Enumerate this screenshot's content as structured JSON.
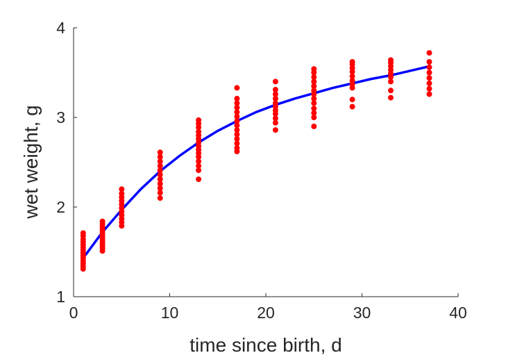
{
  "chart_data": {
    "type": "scatter",
    "title": "",
    "xlabel": "time since birth, d",
    "ylabel": "wet weight, g",
    "xlim": [
      0,
      40
    ],
    "ylim": [
      1,
      4
    ],
    "xticks": [
      0,
      10,
      20,
      30,
      40
    ],
    "yticks": [
      1,
      2,
      3,
      4
    ],
    "grid": false,
    "colors": {
      "points": "#ff0000",
      "curve": "#0000ff",
      "axes": "#262626"
    },
    "series": [
      {
        "type": "scatter",
        "points": [
          [
            1,
            1.31
          ],
          [
            1,
            1.34
          ],
          [
            1,
            1.37
          ],
          [
            1,
            1.4
          ],
          [
            1,
            1.43
          ],
          [
            1,
            1.46
          ],
          [
            1,
            1.49
          ],
          [
            1,
            1.52
          ],
          [
            1,
            1.55
          ],
          [
            1,
            1.58
          ],
          [
            1,
            1.61
          ],
          [
            1,
            1.64
          ],
          [
            1,
            1.68
          ],
          [
            1,
            1.71
          ],
          [
            3,
            1.51
          ],
          [
            3,
            1.54
          ],
          [
            3,
            1.57
          ],
          [
            3,
            1.6
          ],
          [
            3,
            1.63
          ],
          [
            3,
            1.66
          ],
          [
            3,
            1.69
          ],
          [
            3,
            1.72
          ],
          [
            3,
            1.75
          ],
          [
            3,
            1.78
          ],
          [
            3,
            1.81
          ],
          [
            3,
            1.84
          ],
          [
            5,
            1.79
          ],
          [
            5,
            1.83
          ],
          [
            5,
            1.87
          ],
          [
            5,
            1.91
          ],
          [
            5,
            1.95
          ],
          [
            5,
            1.99
          ],
          [
            5,
            2.03
          ],
          [
            5,
            2.07
          ],
          [
            5,
            2.11
          ],
          [
            5,
            2.15
          ],
          [
            5,
            2.2
          ],
          [
            9,
            2.1
          ],
          [
            9,
            2.16
          ],
          [
            9,
            2.21
          ],
          [
            9,
            2.26
          ],
          [
            9,
            2.31
          ],
          [
            9,
            2.36
          ],
          [
            9,
            2.41
          ],
          [
            9,
            2.46
          ],
          [
            9,
            2.51
          ],
          [
            9,
            2.56
          ],
          [
            9,
            2.61
          ],
          [
            13,
            2.31
          ],
          [
            13,
            2.41
          ],
          [
            13,
            2.46
          ],
          [
            13,
            2.51
          ],
          [
            13,
            2.56
          ],
          [
            13,
            2.6
          ],
          [
            13,
            2.64
          ],
          [
            13,
            2.68
          ],
          [
            13,
            2.72
          ],
          [
            13,
            2.76
          ],
          [
            13,
            2.8
          ],
          [
            13,
            2.84
          ],
          [
            13,
            2.89
          ],
          [
            13,
            2.93
          ],
          [
            13,
            2.97
          ],
          [
            17,
            2.62
          ],
          [
            17,
            2.66
          ],
          [
            17,
            2.71
          ],
          [
            17,
            2.76
          ],
          [
            17,
            2.81
          ],
          [
            17,
            2.86
          ],
          [
            17,
            2.91
          ],
          [
            17,
            2.96
          ],
          [
            17,
            3.01
          ],
          [
            17,
            3.06
          ],
          [
            17,
            3.11
          ],
          [
            17,
            3.16
          ],
          [
            17,
            3.21
          ],
          [
            17,
            3.33
          ],
          [
            21,
            2.86
          ],
          [
            21,
            2.94
          ],
          [
            21,
            2.99
          ],
          [
            21,
            3.04
          ],
          [
            21,
            3.08
          ],
          [
            21,
            3.12
          ],
          [
            21,
            3.16
          ],
          [
            21,
            3.21
          ],
          [
            21,
            3.26
          ],
          [
            21,
            3.31
          ],
          [
            21,
            3.4
          ],
          [
            25,
            2.9
          ],
          [
            25,
            3.0
          ],
          [
            25,
            3.05
          ],
          [
            25,
            3.1
          ],
          [
            25,
            3.16
          ],
          [
            25,
            3.21
          ],
          [
            25,
            3.26
          ],
          [
            25,
            3.3
          ],
          [
            25,
            3.35
          ],
          [
            25,
            3.4
          ],
          [
            25,
            3.45
          ],
          [
            25,
            3.5
          ],
          [
            25,
            3.54
          ],
          [
            29,
            3.12
          ],
          [
            29,
            3.2
          ],
          [
            29,
            3.33
          ],
          [
            29,
            3.37
          ],
          [
            29,
            3.41
          ],
          [
            29,
            3.46
          ],
          [
            29,
            3.51
          ],
          [
            29,
            3.55
          ],
          [
            29,
            3.59
          ],
          [
            29,
            3.62
          ],
          [
            33,
            3.22
          ],
          [
            33,
            3.3
          ],
          [
            33,
            3.4
          ],
          [
            33,
            3.45
          ],
          [
            33,
            3.49
          ],
          [
            33,
            3.53
          ],
          [
            33,
            3.57
          ],
          [
            33,
            3.61
          ],
          [
            33,
            3.64
          ],
          [
            37,
            3.26
          ],
          [
            37,
            3.32
          ],
          [
            37,
            3.38
          ],
          [
            37,
            3.44
          ],
          [
            37,
            3.5
          ],
          [
            37,
            3.56
          ],
          [
            37,
            3.62
          ],
          [
            37,
            3.72
          ]
        ]
      },
      {
        "type": "line",
        "points": [
          [
            1,
            1.43
          ],
          [
            3,
            1.72
          ],
          [
            5,
            1.97
          ],
          [
            7,
            2.2
          ],
          [
            9,
            2.4
          ],
          [
            11,
            2.57
          ],
          [
            13,
            2.72
          ],
          [
            15,
            2.85
          ],
          [
            17,
            2.96
          ],
          [
            19,
            3.06
          ],
          [
            21,
            3.14
          ],
          [
            23,
            3.21
          ],
          [
            25,
            3.27
          ],
          [
            27,
            3.33
          ],
          [
            29,
            3.38
          ],
          [
            31,
            3.43
          ],
          [
            33,
            3.47
          ],
          [
            35,
            3.52
          ],
          [
            37,
            3.57
          ]
        ]
      }
    ]
  }
}
